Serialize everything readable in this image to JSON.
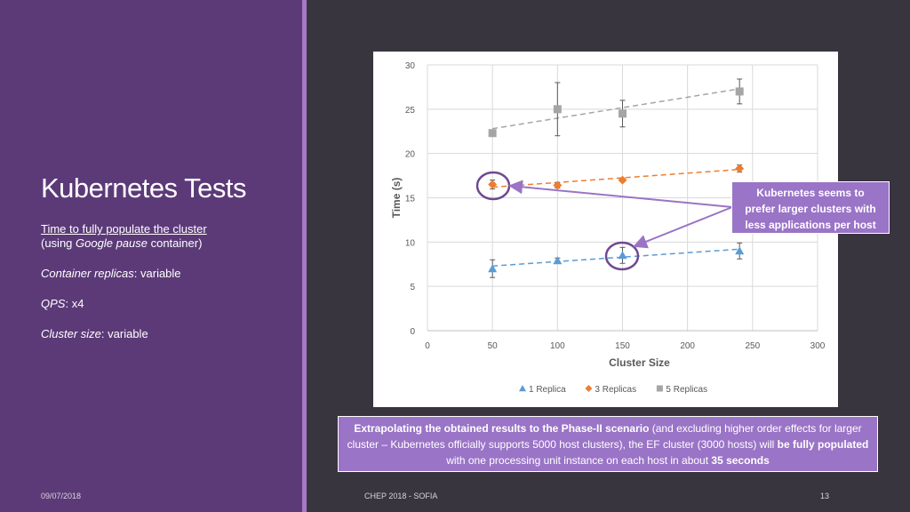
{
  "slide": {
    "title": "Kubernetes Tests",
    "subtitle_underlined": "Time to fully populate the cluster",
    "subtitle_prefix": "(using ",
    "subtitle_italic": "Google pause",
    "subtitle_suffix": " container)",
    "p1_label": "Container replicas",
    "p1_value": ": variable",
    "p2_label": "QPS",
    "p2_value": ": x4",
    "p3_label": "Cluster size",
    "p3_value": ": variable"
  },
  "callout": {
    "line1": "Kubernetes seems to",
    "line2": "prefer larger clusters with",
    "line3": "less applications per host"
  },
  "note": {
    "b1": "Extrapolating the obtained results to the Phase-II scenario",
    "t1": " (and excluding higher order effects for larger cluster – Kubernetes officially supports 5000 host clusters), the EF cluster (3000 hosts) will ",
    "b2": "be fully populated",
    "t2": " with one processing unit instance on each host in about ",
    "b3": "35 seconds"
  },
  "footer": {
    "date": "09/07/2018",
    "event": "CHEP 2018 - SOFIA",
    "page": "13"
  },
  "chart_data": {
    "type": "scatter",
    "xlabel": "Cluster Size",
    "ylabel": "Time (s)",
    "xlim": [
      0,
      300
    ],
    "ylim": [
      0,
      30
    ],
    "xticks": [
      0,
      50,
      100,
      150,
      200,
      250,
      300
    ],
    "yticks": [
      0,
      5,
      10,
      15,
      20,
      25,
      30
    ],
    "grid": true,
    "legend": "bottom",
    "series": [
      {
        "name": "1 Replica",
        "marker": "triangle",
        "color": "#5b9bd5",
        "x": [
          50,
          100,
          150,
          240
        ],
        "y": [
          7.0,
          7.9,
          8.5,
          9.0
        ],
        "err": [
          1.0,
          0.3,
          0.9,
          0.9
        ],
        "trend": [
          [
            50,
            7.3
          ],
          [
            240,
            9.2
          ]
        ]
      },
      {
        "name": "3 Replicas",
        "marker": "diamond",
        "color": "#ed7d31",
        "x": [
          50,
          100,
          150,
          240
        ],
        "y": [
          16.5,
          16.4,
          17.0,
          18.3
        ],
        "err": [
          0.5,
          0.3,
          0.2,
          0.4
        ],
        "trend": [
          [
            50,
            16.2
          ],
          [
            240,
            18.2
          ]
        ]
      },
      {
        "name": "5 Replicas",
        "marker": "square",
        "color": "#a5a5a5",
        "x": [
          50,
          100,
          150,
          240
        ],
        "y": [
          22.3,
          25.0,
          24.5,
          27.0
        ],
        "err": [
          0.3,
          3.0,
          1.5,
          1.4
        ],
        "trend": [
          [
            50,
            22.8
          ],
          [
            240,
            27.3
          ]
        ]
      }
    ]
  }
}
